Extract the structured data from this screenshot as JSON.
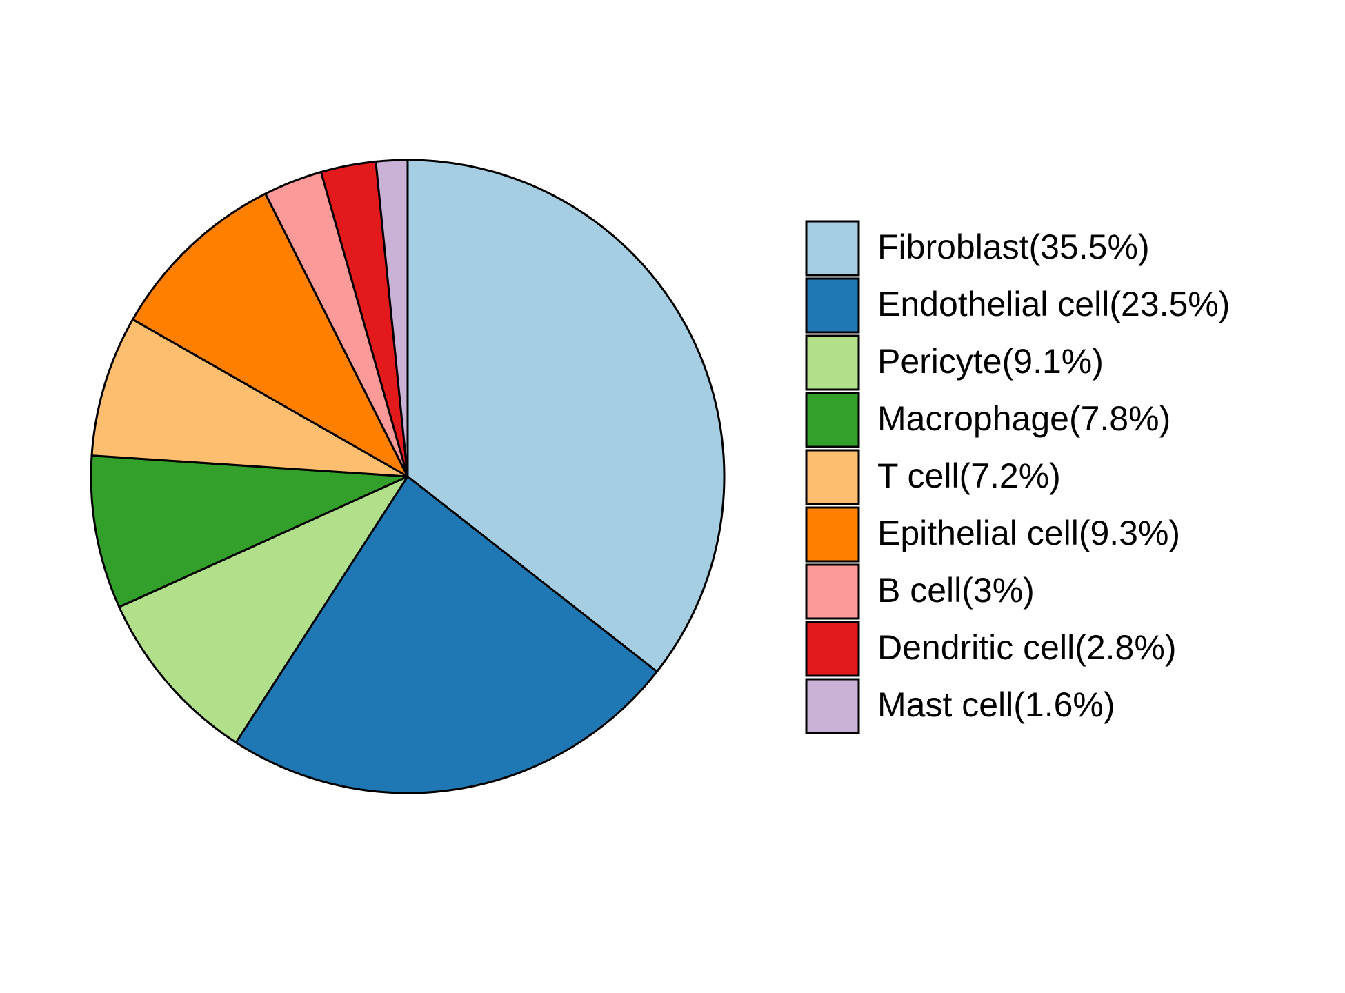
{
  "chart_data": {
    "type": "pie",
    "categories": [
      "Fibroblast(35.5%)",
      "Endothelial cell(23.5%)",
      "Pericyte(9.1%)",
      "Macrophage(7.8%)",
      "T cell(7.2%)",
      "Epithelial cell(9.3%)",
      "B cell(3%)",
      "Dendritic cell(2.8%)",
      "Mast cell(1.6%)"
    ],
    "values": [
      35.5,
      23.5,
      9.1,
      7.8,
      7.2,
      9.3,
      3,
      2.8,
      1.6
    ],
    "colors": [
      "#a6cee3",
      "#1f78b4",
      "#b2df8a",
      "#33a02c",
      "#fdbf6f",
      "#ff7f00",
      "#fb9a99",
      "#e31a1c",
      "#cab2d6"
    ],
    "legend": "right"
  }
}
